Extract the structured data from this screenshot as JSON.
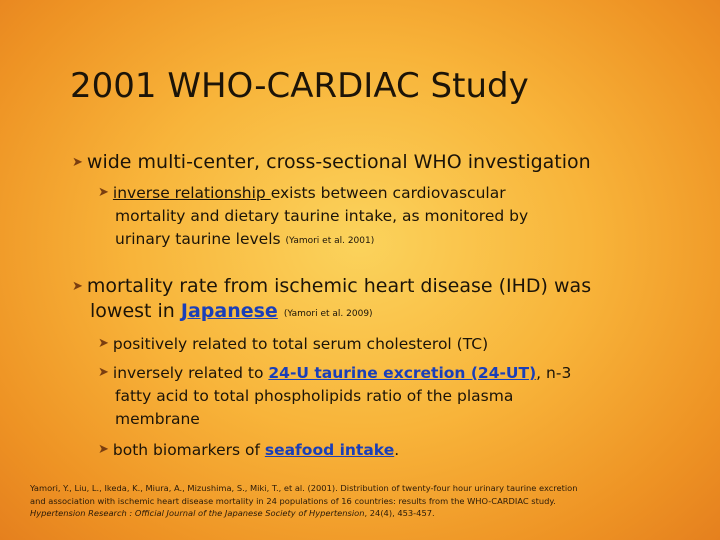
{
  "slide": {
    "title": "2001 WHO-CARDIAC Study",
    "b1": {
      "text": "wide multi-center, cross-sectional WHO investigation"
    },
    "b1_sub": {
      "underlined": "inverse relationship ",
      "line1_rest": "exists between cardiovascular",
      "line2": "mortality and dietary taurine intake, as monitored by",
      "line3": "urinary taurine levels",
      "cite": "(Yamori et al. 2001)"
    },
    "b2": {
      "line1": "mortality rate from ischemic heart disease (IHD) was",
      "line2_pre": "lowest in ",
      "link": "Japanese",
      "cite": "(Yamori et al. 2009)"
    },
    "b2_sub1": {
      "text": "positively related to total serum cholesterol (TC)"
    },
    "b2_sub2": {
      "pre": "inversely related to ",
      "link": "24-U taurine excretion (24-UT)",
      "post": ", n-3",
      "line2": "fatty acid to total phospholipids ratio of the plasma",
      "line3": "membrane"
    },
    "b2_sub3": {
      "pre": "both biomarkers of ",
      "link": "seafood intake",
      "post": "."
    },
    "reference": {
      "line1": "Yamori, Y., Liu, L., Ikeda, K., Miura, A., Mizushima, S., Miki, T., et al. (2001). Distribution of twenty-four hour urinary taurine excretion",
      "line2": "and association with ischemic heart disease mortality in 24 populations of 16 countries: results from the WHO-CARDIAC study.",
      "journal": "Hypertension Research : Official Journal of the Japanese Society of Hypertension",
      "tail": ", 24(4), 453-457."
    }
  }
}
